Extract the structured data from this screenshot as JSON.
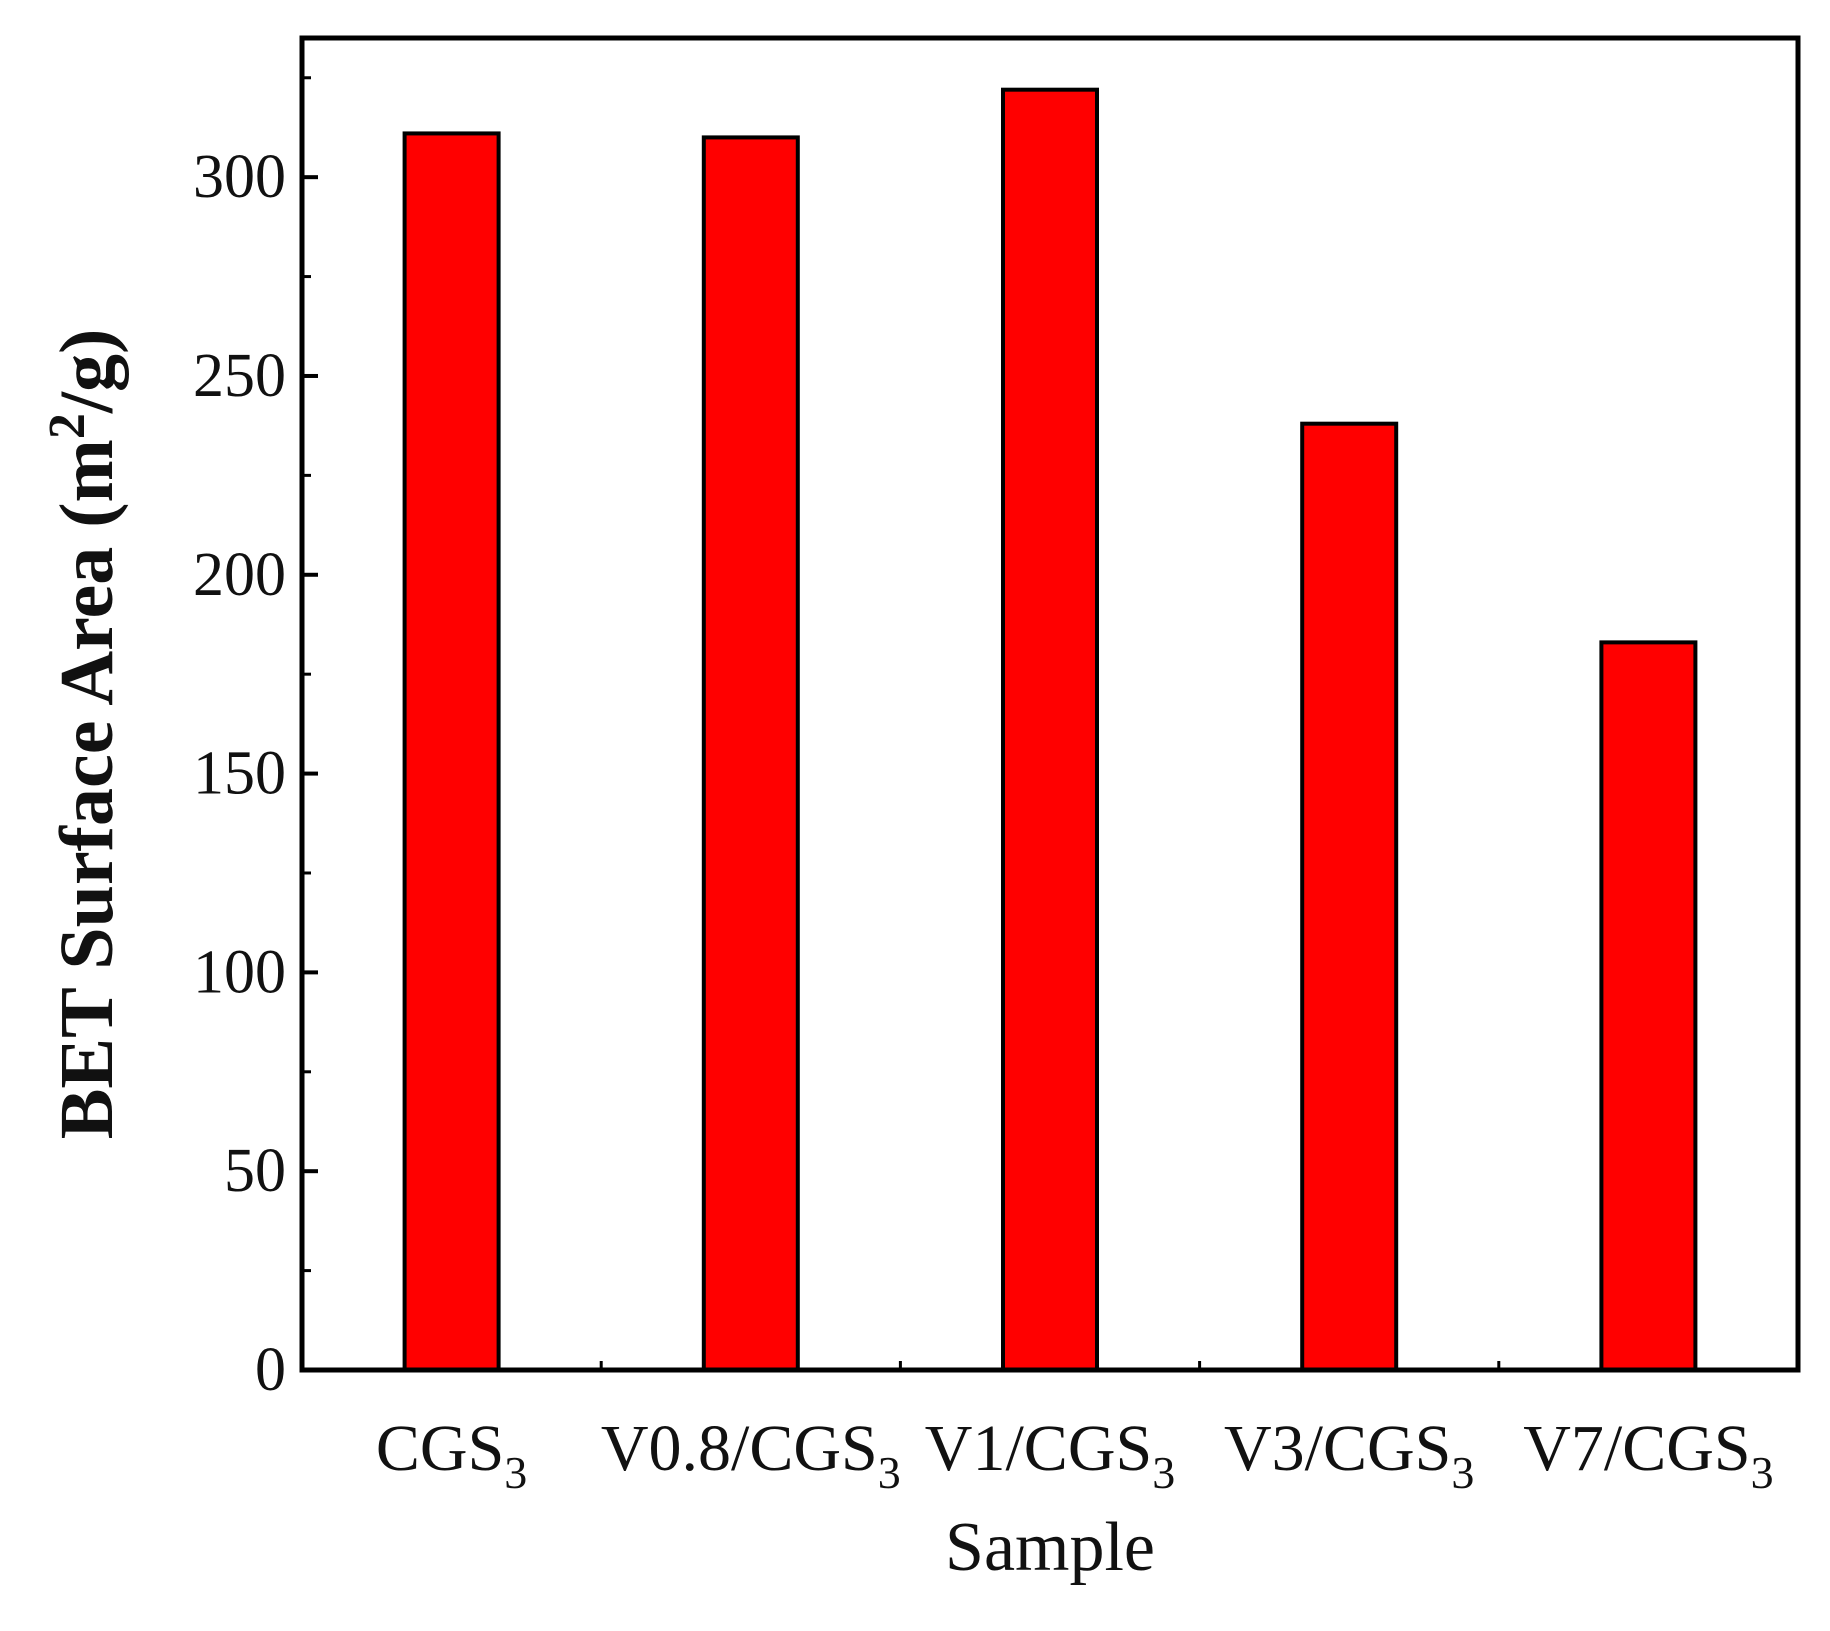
{
  "chart_data": {
    "type": "bar",
    "categories": [
      {
        "main": "CGS",
        "sub": "3"
      },
      {
        "main": "V0.8/CGS",
        "sub": "3"
      },
      {
        "main": "V1/CGS",
        "sub": "3"
      },
      {
        "main": "V3/CGS",
        "sub": "3"
      },
      {
        "main": "V7/CGS",
        "sub": "3"
      }
    ],
    "values": [
      311,
      310,
      322,
      238,
      183
    ],
    "xlabel": "Sample",
    "ylabel": {
      "text": "BET Surface Area (m",
      "sup": "2",
      "tail": "/g)"
    },
    "ylim": [
      0,
      335
    ],
    "yticks": [
      0,
      50,
      100,
      150,
      200,
      250,
      300
    ],
    "bar_color": "#ff0000",
    "bar_edge_color": "#000000",
    "grid": false,
    "legend": "none"
  }
}
